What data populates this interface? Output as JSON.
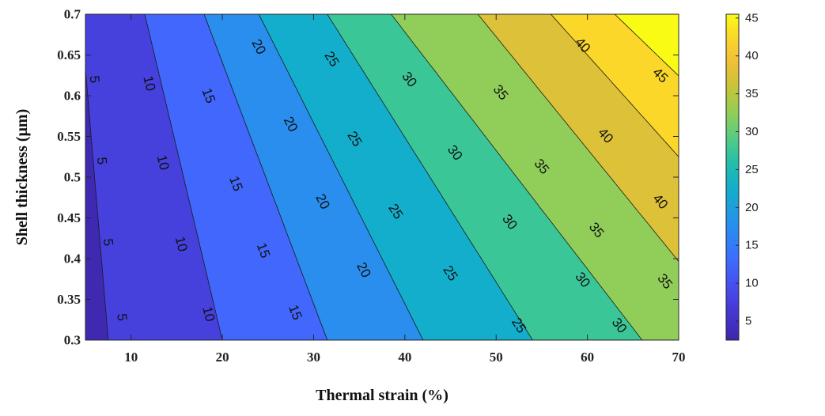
{
  "chart_data": {
    "type": "contour",
    "title": "",
    "xlabel": "Thermal strain (%)",
    "ylabel": "Shell thickness (μm)",
    "xlim": [
      5,
      70
    ],
    "ylim": [
      0.3,
      0.7
    ],
    "x_ticks": [
      "10",
      "20",
      "30",
      "40",
      "50",
      "60",
      "70"
    ],
    "y_ticks": [
      "0.3",
      "0.35",
      "0.4",
      "0.45",
      "0.5",
      "0.55",
      "0.6",
      "0.65",
      "0.7"
    ],
    "colorbar": {
      "ticks": [
        "5",
        "10",
        "15",
        "20",
        "25",
        "30",
        "35",
        "40",
        "45"
      ],
      "range": [
        2.5,
        45.5
      ],
      "colormap": "parula"
    },
    "contour_levels": [
      5,
      10,
      15,
      20,
      25,
      30,
      35,
      40,
      45
    ],
    "contour_lines": [
      {
        "level": 5,
        "x_at_y_0_3": 7.5,
        "x_at_y_0_7": 4.5
      },
      {
        "level": 10,
        "x_at_y_0_3": 20.0,
        "x_at_y_0_7": 11.5
      },
      {
        "level": 15,
        "x_at_y_0_3": 31.5,
        "x_at_y_0_7": 18.0
      },
      {
        "level": 20,
        "x_at_y_0_3": 42.0,
        "x_at_y_0_7": 24.0
      },
      {
        "level": 25,
        "x_at_y_0_3": 54.0,
        "x_at_y_0_7": 31.5
      },
      {
        "level": 30,
        "x_at_y_0_3": 66.0,
        "x_at_y_0_7": 38.5
      },
      {
        "level": 35,
        "x_at_y_0_3": 77.0,
        "x_at_y_0_7": 48.0
      },
      {
        "level": 40,
        "x_at_y_0_3": 88.0,
        "x_at_y_0_7": 56.0
      },
      {
        "level": 45,
        "x_at_y_0_3": 100.0,
        "x_at_y_0_7": 63.0
      }
    ],
    "contour_labels": [
      {
        "text": "5",
        "x": 6.0,
        "y": 0.62
      },
      {
        "text": "5",
        "x": 6.8,
        "y": 0.52
      },
      {
        "text": "5",
        "x": 7.5,
        "y": 0.42
      },
      {
        "text": "5",
        "x": 9.0,
        "y": 0.328
      },
      {
        "text": "10",
        "x": 12.0,
        "y": 0.615
      },
      {
        "text": "10",
        "x": 13.5,
        "y": 0.518
      },
      {
        "text": "10",
        "x": 15.5,
        "y": 0.418
      },
      {
        "text": "10",
        "x": 18.5,
        "y": 0.332
      },
      {
        "text": "15",
        "x": 18.5,
        "y": 0.6
      },
      {
        "text": "15",
        "x": 21.5,
        "y": 0.492
      },
      {
        "text": "15",
        "x": 24.5,
        "y": 0.41
      },
      {
        "text": "15",
        "x": 28.0,
        "y": 0.334
      },
      {
        "text": "20",
        "x": 24.0,
        "y": 0.66
      },
      {
        "text": "20",
        "x": 27.5,
        "y": 0.565
      },
      {
        "text": "20",
        "x": 31.0,
        "y": 0.47
      },
      {
        "text": "20",
        "x": 35.5,
        "y": 0.386
      },
      {
        "text": "25",
        "x": 32.0,
        "y": 0.645
      },
      {
        "text": "25",
        "x": 34.5,
        "y": 0.547
      },
      {
        "text": "25",
        "x": 39.0,
        "y": 0.458
      },
      {
        "text": "25",
        "x": 45.0,
        "y": 0.382
      },
      {
        "text": "25",
        "x": 52.5,
        "y": 0.318
      },
      {
        "text": "30",
        "x": 40.5,
        "y": 0.62
      },
      {
        "text": "30",
        "x": 45.5,
        "y": 0.53
      },
      {
        "text": "30",
        "x": 51.5,
        "y": 0.445
      },
      {
        "text": "30",
        "x": 59.5,
        "y": 0.374
      },
      {
        "text": "30",
        "x": 63.5,
        "y": 0.318
      },
      {
        "text": "35",
        "x": 50.5,
        "y": 0.604
      },
      {
        "text": "35",
        "x": 55.0,
        "y": 0.513
      },
      {
        "text": "35",
        "x": 61.0,
        "y": 0.435
      },
      {
        "text": "35",
        "x": 68.5,
        "y": 0.372
      },
      {
        "text": "40",
        "x": 59.5,
        "y": 0.662
      },
      {
        "text": "40",
        "x": 62.0,
        "y": 0.551
      },
      {
        "text": "40",
        "x": 68.0,
        "y": 0.47
      },
      {
        "text": "45",
        "x": 68.0,
        "y": 0.625
      }
    ]
  }
}
